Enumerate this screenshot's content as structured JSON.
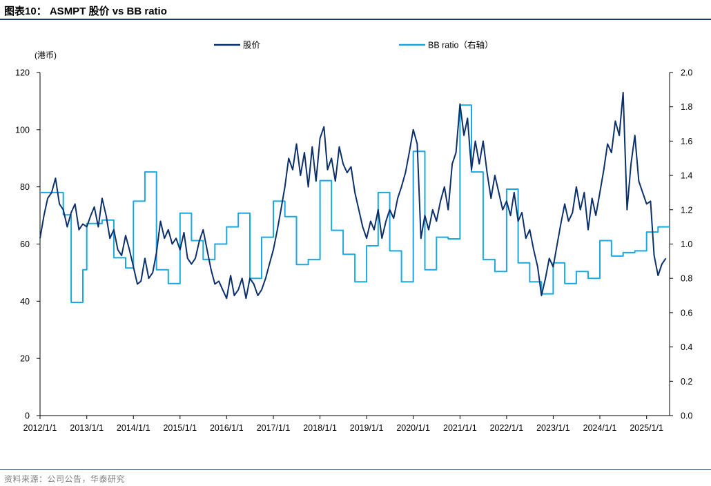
{
  "header": {
    "title": "图表10： ASMPT 股价 vs BB ratio"
  },
  "footer": {
    "source": "资料来源：公司公告，华泰研究"
  },
  "colors": {
    "price": "#0b2f6b",
    "bb": "#19a8e0",
    "rule": "#1f3864"
  },
  "chart_data": {
    "type": "line",
    "title": "ASMPT 股价 vs BB ratio",
    "left_axis": {
      "unit_label": "(港币)",
      "range": [
        0,
        120
      ],
      "ticks": [
        0,
        20,
        40,
        60,
        80,
        100,
        120
      ]
    },
    "right_axis": {
      "range": [
        0.0,
        2.0
      ],
      "ticks": [
        "0.0",
        "0.2",
        "0.4",
        "0.6",
        "0.8",
        "1.0",
        "1.2",
        "1.4",
        "1.6",
        "1.8",
        "2.0"
      ]
    },
    "x_axis": {
      "range": [
        "2012/1/1",
        "2025/6/30"
      ],
      "ticks": [
        "2012/1/1",
        "2013/1/1",
        "2014/1/1",
        "2015/1/1",
        "2016/1/1",
        "2017/1/1",
        "2018/1/1",
        "2019/1/1",
        "2020/1/1",
        "2021/1/1",
        "2022/1/1",
        "2023/1/1",
        "2024/1/1",
        "2025/1/1"
      ]
    },
    "legend_position": "top-center",
    "series": [
      {
        "name": "股价",
        "axis": "left",
        "style": "line",
        "points": [
          [
            "2012/1/1",
            62
          ],
          [
            "2012/2/1",
            70
          ],
          [
            "2012/3/1",
            76
          ],
          [
            "2012/4/1",
            78
          ],
          [
            "2012/5/1",
            83
          ],
          [
            "2012/6/1",
            74
          ],
          [
            "2012/7/1",
            72
          ],
          [
            "2012/8/1",
            66
          ],
          [
            "2012/9/1",
            71
          ],
          [
            "2012/10/1",
            74
          ],
          [
            "2012/11/1",
            65
          ],
          [
            "2012/12/1",
            67
          ],
          [
            "2013/1/1",
            66
          ],
          [
            "2013/2/1",
            70
          ],
          [
            "2013/3/1",
            73
          ],
          [
            "2013/4/1",
            66
          ],
          [
            "2013/5/1",
            76
          ],
          [
            "2013/6/1",
            70
          ],
          [
            "2013/7/1",
            62
          ],
          [
            "2013/8/1",
            65
          ],
          [
            "2013/9/1",
            58
          ],
          [
            "2013/10/1",
            56
          ],
          [
            "2013/11/1",
            63
          ],
          [
            "2013/12/1",
            58
          ],
          [
            "2014/1/1",
            52
          ],
          [
            "2014/2/1",
            46
          ],
          [
            "2014/3/1",
            47
          ],
          [
            "2014/4/1",
            55
          ],
          [
            "2014/5/1",
            48
          ],
          [
            "2014/6/1",
            50
          ],
          [
            "2014/7/1",
            57
          ],
          [
            "2014/8/1",
            68
          ],
          [
            "2014/9/1",
            62
          ],
          [
            "2014/10/1",
            65
          ],
          [
            "2014/11/1",
            60
          ],
          [
            "2014/12/1",
            62
          ],
          [
            "2015/1/1",
            58
          ],
          [
            "2015/2/1",
            64
          ],
          [
            "2015/3/1",
            55
          ],
          [
            "2015/4/1",
            53
          ],
          [
            "2015/5/1",
            55
          ],
          [
            "2015/6/1",
            61
          ],
          [
            "2015/7/1",
            65
          ],
          [
            "2015/8/1",
            58
          ],
          [
            "2015/9/1",
            51
          ],
          [
            "2015/10/1",
            46
          ],
          [
            "2015/11/1",
            47
          ],
          [
            "2015/12/1",
            44
          ],
          [
            "2016/1/1",
            41
          ],
          [
            "2016/2/1",
            49
          ],
          [
            "2016/3/1",
            42
          ],
          [
            "2016/4/1",
            44
          ],
          [
            "2016/5/1",
            48
          ],
          [
            "2016/6/1",
            41
          ],
          [
            "2016/7/1",
            48
          ],
          [
            "2016/8/1",
            46
          ],
          [
            "2016/9/1",
            42
          ],
          [
            "2016/10/1",
            44
          ],
          [
            "2016/11/1",
            48
          ],
          [
            "2016/12/1",
            53
          ],
          [
            "2017/1/1",
            58
          ],
          [
            "2017/2/1",
            65
          ],
          [
            "2017/3/1",
            72
          ],
          [
            "2017/4/1",
            80
          ],
          [
            "2017/5/1",
            90
          ],
          [
            "2017/6/1",
            86
          ],
          [
            "2017/7/1",
            95
          ],
          [
            "2017/8/1",
            84
          ],
          [
            "2017/9/1",
            92
          ],
          [
            "2017/10/1",
            80
          ],
          [
            "2017/11/1",
            94
          ],
          [
            "2017/12/1",
            82
          ],
          [
            "2018/1/1",
            97
          ],
          [
            "2018/2/1",
            101
          ],
          [
            "2018/3/1",
            86
          ],
          [
            "2018/4/1",
            90
          ],
          [
            "2018/5/1",
            82
          ],
          [
            "2018/6/1",
            94
          ],
          [
            "2018/7/1",
            88
          ],
          [
            "2018/8/1",
            85
          ],
          [
            "2018/9/1",
            87
          ],
          [
            "2018/10/1",
            78
          ],
          [
            "2018/11/1",
            72
          ],
          [
            "2018/12/1",
            66
          ],
          [
            "2019/1/1",
            62
          ],
          [
            "2019/2/1",
            68
          ],
          [
            "2019/3/1",
            65
          ],
          [
            "2019/4/1",
            72
          ],
          [
            "2019/5/1",
            62
          ],
          [
            "2019/6/1",
            68
          ],
          [
            "2019/7/1",
            72
          ],
          [
            "2019/8/1",
            69
          ],
          [
            "2019/9/1",
            76
          ],
          [
            "2019/10/1",
            80
          ],
          [
            "2019/11/1",
            85
          ],
          [
            "2019/12/1",
            92
          ],
          [
            "2020/1/1",
            100
          ],
          [
            "2020/2/1",
            95
          ],
          [
            "2020/3/1",
            62
          ],
          [
            "2020/4/1",
            70
          ],
          [
            "2020/5/1",
            65
          ],
          [
            "2020/6/1",
            72
          ],
          [
            "2020/7/1",
            68
          ],
          [
            "2020/8/1",
            75
          ],
          [
            "2020/9/1",
            80
          ],
          [
            "2020/10/1",
            72
          ],
          [
            "2020/11/1",
            88
          ],
          [
            "2020/12/1",
            92
          ],
          [
            "2021/1/1",
            109
          ],
          [
            "2021/2/1",
            98
          ],
          [
            "2021/3/1",
            104
          ],
          [
            "2021/4/1",
            86
          ],
          [
            "2021/5/1",
            96
          ],
          [
            "2021/6/1",
            88
          ],
          [
            "2021/7/1",
            96
          ],
          [
            "2021/8/1",
            85
          ],
          [
            "2021/9/1",
            76
          ],
          [
            "2021/10/1",
            84
          ],
          [
            "2021/11/1",
            78
          ],
          [
            "2021/12/1",
            72
          ],
          [
            "2022/1/1",
            75
          ],
          [
            "2022/2/1",
            70
          ],
          [
            "2022/3/1",
            78
          ],
          [
            "2022/4/1",
            68
          ],
          [
            "2022/5/1",
            71
          ],
          [
            "2022/6/1",
            62
          ],
          [
            "2022/7/1",
            65
          ],
          [
            "2022/8/1",
            58
          ],
          [
            "2022/9/1",
            52
          ],
          [
            "2022/10/1",
            42
          ],
          [
            "2022/11/1",
            48
          ],
          [
            "2022/12/1",
            55
          ],
          [
            "2023/1/1",
            52
          ],
          [
            "2023/2/1",
            60
          ],
          [
            "2023/3/1",
            67
          ],
          [
            "2023/4/1",
            74
          ],
          [
            "2023/5/1",
            68
          ],
          [
            "2023/6/1",
            71
          ],
          [
            "2023/7/1",
            80
          ],
          [
            "2023/8/1",
            72
          ],
          [
            "2023/9/1",
            78
          ],
          [
            "2023/10/1",
            65
          ],
          [
            "2023/11/1",
            76
          ],
          [
            "2023/12/1",
            70
          ],
          [
            "2024/1/1",
            78
          ],
          [
            "2024/2/1",
            86
          ],
          [
            "2024/3/1",
            95
          ],
          [
            "2024/4/1",
            92
          ],
          [
            "2024/5/1",
            103
          ],
          [
            "2024/6/1",
            98
          ],
          [
            "2024/7/1",
            113
          ],
          [
            "2024/8/1",
            72
          ],
          [
            "2024/9/1",
            88
          ],
          [
            "2024/10/1",
            98
          ],
          [
            "2024/11/1",
            82
          ],
          [
            "2024/12/1",
            78
          ],
          [
            "2025/1/1",
            74
          ],
          [
            "2025/2/1",
            75
          ],
          [
            "2025/3/1",
            56
          ],
          [
            "2025/4/1",
            49
          ],
          [
            "2025/5/1",
            53
          ],
          [
            "2025/6/1",
            55
          ]
        ]
      },
      {
        "name": "BB ratio（右轴）",
        "axis": "right",
        "style": "step",
        "points": [
          [
            "2012/1/1",
            1.3
          ],
          [
            "2012/7/1",
            1.17
          ],
          [
            "2012/9/1",
            0.66
          ],
          [
            "2012/12/1",
            0.85
          ],
          [
            "2013/1/1",
            1.12
          ],
          [
            "2013/5/1",
            1.14
          ],
          [
            "2013/8/1",
            0.92
          ],
          [
            "2013/11/1",
            0.86
          ],
          [
            "2014/1/1",
            1.25
          ],
          [
            "2014/4/1",
            1.42
          ],
          [
            "2014/7/1",
            0.85
          ],
          [
            "2014/10/1",
            0.77
          ],
          [
            "2015/1/1",
            1.18
          ],
          [
            "2015/4/1",
            1.02
          ],
          [
            "2015/7/1",
            0.91
          ],
          [
            "2015/10/1",
            1.0
          ],
          [
            "2016/1/1",
            1.1
          ],
          [
            "2016/4/1",
            1.18
          ],
          [
            "2016/7/1",
            0.8
          ],
          [
            "2016/10/1",
            1.04
          ],
          [
            "2017/1/1",
            1.25
          ],
          [
            "2017/4/1",
            1.16
          ],
          [
            "2017/7/1",
            0.88
          ],
          [
            "2017/10/1",
            0.91
          ],
          [
            "2018/1/1",
            1.37
          ],
          [
            "2018/4/1",
            1.08
          ],
          [
            "2018/7/1",
            0.94
          ],
          [
            "2018/10/1",
            0.78
          ],
          [
            "2019/1/1",
            0.99
          ],
          [
            "2019/4/1",
            1.3
          ],
          [
            "2019/7/1",
            0.96
          ],
          [
            "2019/10/1",
            0.78
          ],
          [
            "2020/1/1",
            1.54
          ],
          [
            "2020/4/1",
            0.85
          ],
          [
            "2020/7/1",
            1.04
          ],
          [
            "2020/10/1",
            1.03
          ],
          [
            "2021/1/1",
            1.81
          ],
          [
            "2021/4/1",
            1.42
          ],
          [
            "2021/7/1",
            0.91
          ],
          [
            "2021/10/1",
            0.84
          ],
          [
            "2022/1/1",
            1.32
          ],
          [
            "2022/4/1",
            0.89
          ],
          [
            "2022/7/1",
            0.78
          ],
          [
            "2022/10/1",
            0.71
          ],
          [
            "2023/1/1",
            0.89
          ],
          [
            "2023/4/1",
            0.77
          ],
          [
            "2023/7/1",
            0.84
          ],
          [
            "2023/10/1",
            0.8
          ],
          [
            "2024/1/1",
            1.02
          ],
          [
            "2024/4/1",
            0.93
          ],
          [
            "2024/7/1",
            0.95
          ],
          [
            "2024/10/1",
            0.96
          ],
          [
            "2025/1/1",
            1.07
          ],
          [
            "2025/4/1",
            1.1
          ],
          [
            "2025/6/30",
            1.1
          ]
        ]
      }
    ]
  }
}
